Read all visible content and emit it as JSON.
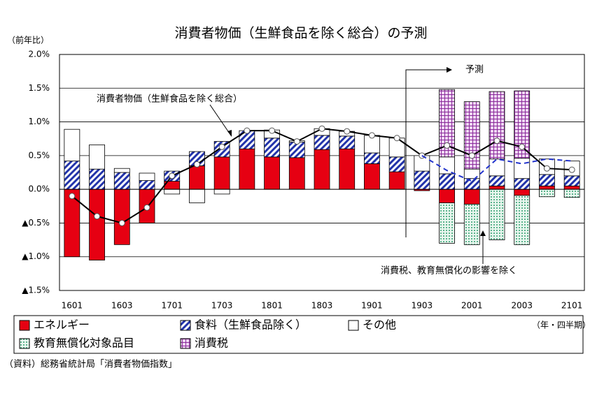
{
  "chart_data": {
    "type": "bar",
    "title": "消費者物価（生鮮食品を除く総合）の予測",
    "y_label": "（前年比）",
    "x_unit": "（年・四半期）",
    "source": "（資料）総務省統計局「消費者物価指数」",
    "annotations": [
      "消費者物価（生鮮食品を除く総合）",
      "予測",
      "消費税、教育無償化の影響を除く"
    ],
    "categories": [
      "1601",
      null,
      "1603",
      null,
      "1701",
      null,
      "1703",
      null,
      "1801",
      null,
      "1803",
      null,
      "1901",
      null,
      "1903",
      null,
      "2001",
      null,
      "2003",
      null,
      "2101"
    ],
    "ylim": [
      -1.5,
      2.0
    ],
    "yticks": [
      {
        "value": -1.5,
        "label": "▲1.5%"
      },
      {
        "value": -1.0,
        "label": "▲1.0%"
      },
      {
        "value": -0.5,
        "label": "▲0.5%"
      },
      {
        "value": 0,
        "label": "0.0%"
      },
      {
        "value": 0.5,
        "label": "0.5%"
      },
      {
        "value": 1.0,
        "label": "1.0%"
      },
      {
        "value": 1.5,
        "label": "1.5%"
      },
      {
        "value": 2.0,
        "label": "2.0%"
      }
    ],
    "grid": true,
    "series": [
      {
        "name": "エネルギー",
        "color": "#e60012",
        "pattern": "solid",
        "values": [
          -1.0,
          -1.05,
          -0.82,
          -0.5,
          0.12,
          0.35,
          0.48,
          0.6,
          0.48,
          0.47,
          0.59,
          0.6,
          0.38,
          0.26,
          -0.02,
          -0.2,
          -0.22,
          0.05,
          -0.09,
          0.05,
          0.05
        ]
      },
      {
        "name": "食料（生鮮食品除く）",
        "color": "#2233aa",
        "pattern": "hatch",
        "values": [
          0.42,
          0.3,
          0.25,
          0.13,
          0.15,
          0.21,
          0.23,
          0.27,
          0.28,
          0.23,
          0.21,
          0.19,
          0.16,
          0.22,
          0.27,
          0.23,
          0.16,
          0.15,
          0.16,
          0.17,
          0.15
        ]
      },
      {
        "name": "その他",
        "color": "#ffffff",
        "pattern": "solid",
        "values": [
          0.47,
          0.36,
          0.06,
          0.11,
          -0.07,
          -0.2,
          -0.07,
          0,
          0.12,
          0.02,
          0.1,
          0.07,
          0.26,
          0.28,
          0.23,
          0.25,
          0.14,
          0.25,
          0.3,
          0.23,
          0.22
        ]
      },
      {
        "name": "教育無償化対象品目",
        "color": "#2e9e6e",
        "pattern": "dots",
        "values": [
          0,
          0,
          0,
          0,
          0,
          0,
          0,
          0,
          0,
          0,
          0,
          0,
          0,
          0,
          0,
          -0.6,
          -0.6,
          -0.75,
          -0.73,
          -0.11,
          -0.12
        ]
      },
      {
        "name": "消費税",
        "color": "#8a2a9a",
        "pattern": "grid",
        "values": [
          0,
          0,
          0,
          0,
          0,
          0,
          0,
          0,
          0,
          0,
          0,
          0,
          0,
          0,
          0,
          1.0,
          1.0,
          1.0,
          1.0,
          0,
          0
        ]
      }
    ],
    "lines": [
      {
        "color": "#000000",
        "style": "solid",
        "markers": true,
        "values": [
          -0.1,
          -0.4,
          -0.5,
          -0.27,
          0.2,
          0.37,
          0.63,
          0.87,
          0.87,
          0.71,
          0.9,
          0.86,
          0.8,
          0.76,
          0.5,
          0.65,
          0.5,
          0.72,
          0.63,
          0.31,
          0.29
        ]
      },
      {
        "color": "#2233cc",
        "style": "dashed",
        "markers": false,
        "values": [
          null,
          null,
          null,
          null,
          null,
          null,
          null,
          null,
          null,
          null,
          null,
          null,
          null,
          null,
          0.5,
          0.28,
          0.12,
          0.45,
          0.38,
          0.45,
          0.42
        ]
      }
    ]
  }
}
